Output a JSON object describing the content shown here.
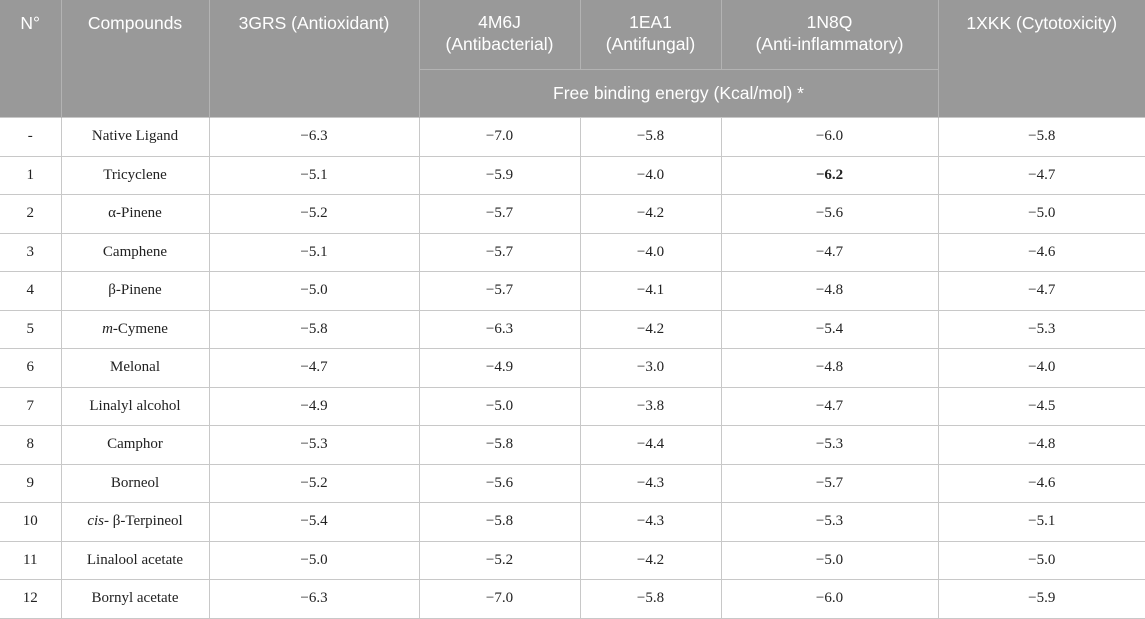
{
  "table": {
    "headers": {
      "no": "N°",
      "compounds": "Compounds",
      "c3grs": "3GRS (Antioxidant)",
      "c4m6j": "4M6J\n(Antibacterial)",
      "c1ea1": "1EA1\n(Antifungal)",
      "c1n8q": "1N8Q\n(Anti-inflammatory)",
      "c1xkk": "1XKK (Cytotoxicity)",
      "group": "Free binding energy (Kcal/mol) *"
    },
    "rows": [
      {
        "no": "-",
        "name": "Native Ligand",
        "v": [
          "−6.3",
          "−7.0",
          "−5.8",
          "−6.0",
          "−5.8"
        ]
      },
      {
        "no": "1",
        "name": "Tricyclene",
        "v": [
          "−5.1",
          "−5.9",
          "−4.0",
          "−6.2",
          "−4.7"
        ]
      },
      {
        "no": "2",
        "name": "α-Pinene",
        "v": [
          "−5.2",
          "−5.7",
          "−4.2",
          "−5.6",
          "−5.0"
        ]
      },
      {
        "no": "3",
        "name": "Camphene",
        "v": [
          "−5.1",
          "−5.7",
          "−4.0",
          "−4.7",
          "−4.6"
        ]
      },
      {
        "no": "4",
        "name": "β-Pinene",
        "v": [
          "−5.0",
          "−5.7",
          "−4.1",
          "−4.8",
          "−4.7"
        ]
      },
      {
        "no": "5",
        "name_prefix": "m",
        "name_rest": "-Cymene",
        "v": [
          "−5.8",
          "−6.3",
          "−4.2",
          "−5.4",
          "−5.3"
        ]
      },
      {
        "no": "6",
        "name": "Melonal",
        "v": [
          "−4.7",
          "−4.9",
          "−3.0",
          "−4.8",
          "−4.0"
        ]
      },
      {
        "no": "7",
        "name": "Linalyl alcohol",
        "v": [
          "−4.9",
          "−5.0",
          "−3.8",
          "−4.7",
          "−4.5"
        ]
      },
      {
        "no": "8",
        "name": "Camphor",
        "v": [
          "−5.3",
          "−5.8",
          "−4.4",
          "−5.3",
          "−4.8"
        ]
      },
      {
        "no": "9",
        "name": "Borneol",
        "v": [
          "−5.2",
          "−5.6",
          "−4.3",
          "−5.7",
          "−4.6"
        ]
      },
      {
        "no": "10",
        "name_prefix": "cis",
        "name_rest": "- β-Terpineol",
        "v": [
          "−5.4",
          "−5.8",
          "−4.3",
          "−5.3",
          "−5.1"
        ]
      },
      {
        "no": "11",
        "name": "Linalool acetate",
        "v": [
          "−5.0",
          "−5.2",
          "−4.2",
          "−5.0",
          "−5.0"
        ]
      },
      {
        "no": "12",
        "name": "Bornyl acetate",
        "v": [
          "−6.3",
          "−7.0",
          "−5.8",
          "−6.0",
          "−5.9"
        ]
      }
    ]
  }
}
